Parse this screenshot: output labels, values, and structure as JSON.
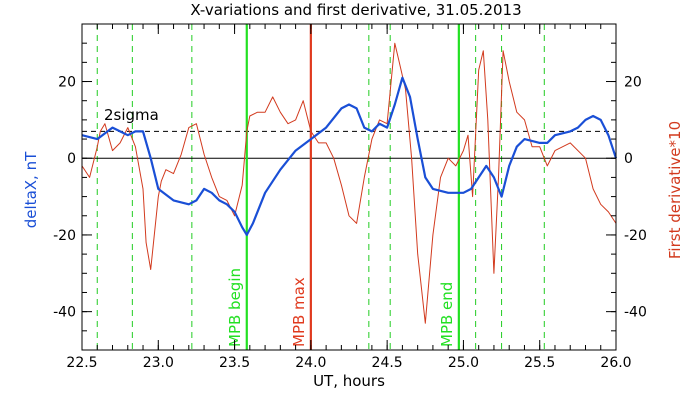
{
  "chart_data": {
    "type": "line",
    "title": "X-variations and first derivative, 31.05.2013",
    "xlabel": "UT, hours",
    "ylabel_left": "deltaX, nT",
    "ylabel_right": "First derivative*10",
    "xlim": [
      22.5,
      26.0
    ],
    "ylim": [
      -50,
      35
    ],
    "x_ticks": [
      "22.5",
      "23.0",
      "23.5",
      "24.0",
      "24.5",
      "25.0",
      "25.5",
      "26.0"
    ],
    "y_ticks_left": [
      "-40",
      "-20",
      "0",
      "20"
    ],
    "y_ticks_right": [
      "-40",
      "-20",
      "0",
      "20"
    ],
    "sigma_label": "2sigma",
    "sigma_level": 7,
    "zero_level": 0,
    "colors": {
      "deltaX": "#1a4fd6",
      "derivative": "#d23a1e",
      "mpb_line": "#22e022",
      "mpb_max_line": "#e03a1e",
      "dashed_marker": "#22cc22"
    },
    "vertical_markers": [
      {
        "x": 23.58,
        "label": "MPB begin",
        "color": "#22e022"
      },
      {
        "x": 24.0,
        "label": "MPB max",
        "color": "#e03a1e"
      },
      {
        "x": 24.97,
        "label": "MPB end",
        "color": "#22e022"
      }
    ],
    "dashed_markers": [
      22.6,
      22.83,
      23.22,
      24.38,
      24.52,
      25.08,
      25.25,
      25.53
    ],
    "series": [
      {
        "name": "deltaX, nT",
        "axis": "left",
        "x": [
          22.5,
          22.6,
          22.7,
          22.75,
          22.8,
          22.85,
          22.9,
          22.95,
          23.0,
          23.1,
          23.2,
          23.25,
          23.3,
          23.35,
          23.4,
          23.45,
          23.5,
          23.55,
          23.58,
          23.62,
          23.7,
          23.8,
          23.9,
          24.0,
          24.1,
          24.2,
          24.25,
          24.3,
          24.35,
          24.4,
          24.45,
          24.5,
          24.55,
          24.6,
          24.65,
          24.7,
          24.75,
          24.8,
          24.9,
          25.0,
          25.05,
          25.1,
          25.15,
          25.2,
          25.25,
          25.3,
          25.35,
          25.4,
          25.5,
          25.55,
          25.6,
          25.7,
          25.75,
          25.8,
          25.85,
          25.9,
          25.95,
          26.0
        ],
        "y": [
          6,
          5,
          8,
          7,
          6,
          7,
          7,
          0,
          -8,
          -11,
          -12,
          -11,
          -8,
          -9,
          -11,
          -12,
          -14,
          -18,
          -20,
          -17,
          -9,
          -3,
          2,
          5,
          8,
          13,
          14,
          13,
          8,
          7,
          9,
          8,
          14,
          21,
          16,
          5,
          -5,
          -8,
          -9,
          -9,
          -8,
          -5,
          -2,
          -5,
          -10,
          -2,
          3,
          5,
          4,
          4,
          6,
          7,
          8,
          10,
          11,
          10,
          6,
          0
        ]
      },
      {
        "name": "First derivative*10",
        "axis": "right",
        "x": [
          22.5,
          22.55,
          22.6,
          22.62,
          22.65,
          22.7,
          22.75,
          22.8,
          22.85,
          22.9,
          22.92,
          22.95,
          23.0,
          23.02,
          23.05,
          23.1,
          23.15,
          23.2,
          23.25,
          23.3,
          23.35,
          23.4,
          23.45,
          23.5,
          23.55,
          23.58,
          23.6,
          23.65,
          23.7,
          23.75,
          23.8,
          23.85,
          23.9,
          23.95,
          24.0,
          24.05,
          24.1,
          24.15,
          24.2,
          24.25,
          24.3,
          24.35,
          24.4,
          24.45,
          24.5,
          24.55,
          24.58,
          24.62,
          24.66,
          24.7,
          24.75,
          24.8,
          24.85,
          24.9,
          24.95,
          25.0,
          25.03,
          25.06,
          25.1,
          25.13,
          25.16,
          25.2,
          25.23,
          25.26,
          25.3,
          25.35,
          25.4,
          25.45,
          25.5,
          25.55,
          25.6,
          25.7,
          25.8,
          25.85,
          25.9,
          25.95,
          26.0
        ],
        "y": [
          -2,
          -5,
          3,
          7,
          9,
          2,
          4,
          8,
          3,
          -8,
          -22,
          -29,
          -10,
          -6,
          -3,
          -4,
          1,
          8,
          9,
          1,
          -5,
          -10,
          -11,
          -15,
          -7,
          7,
          11,
          12,
          12,
          16,
          12,
          9,
          10,
          15,
          7,
          4,
          4,
          0,
          -7,
          -15,
          -17,
          -5,
          5,
          10,
          9,
          30,
          25,
          18,
          0,
          -25,
          -43,
          -20,
          -5,
          0,
          -2,
          2,
          6,
          -10,
          23,
          28,
          10,
          -30,
          -5,
          28,
          20,
          12,
          10,
          3,
          3,
          -2,
          2,
          4,
          0,
          -8,
          -12,
          -14,
          -17
        ]
      }
    ]
  }
}
